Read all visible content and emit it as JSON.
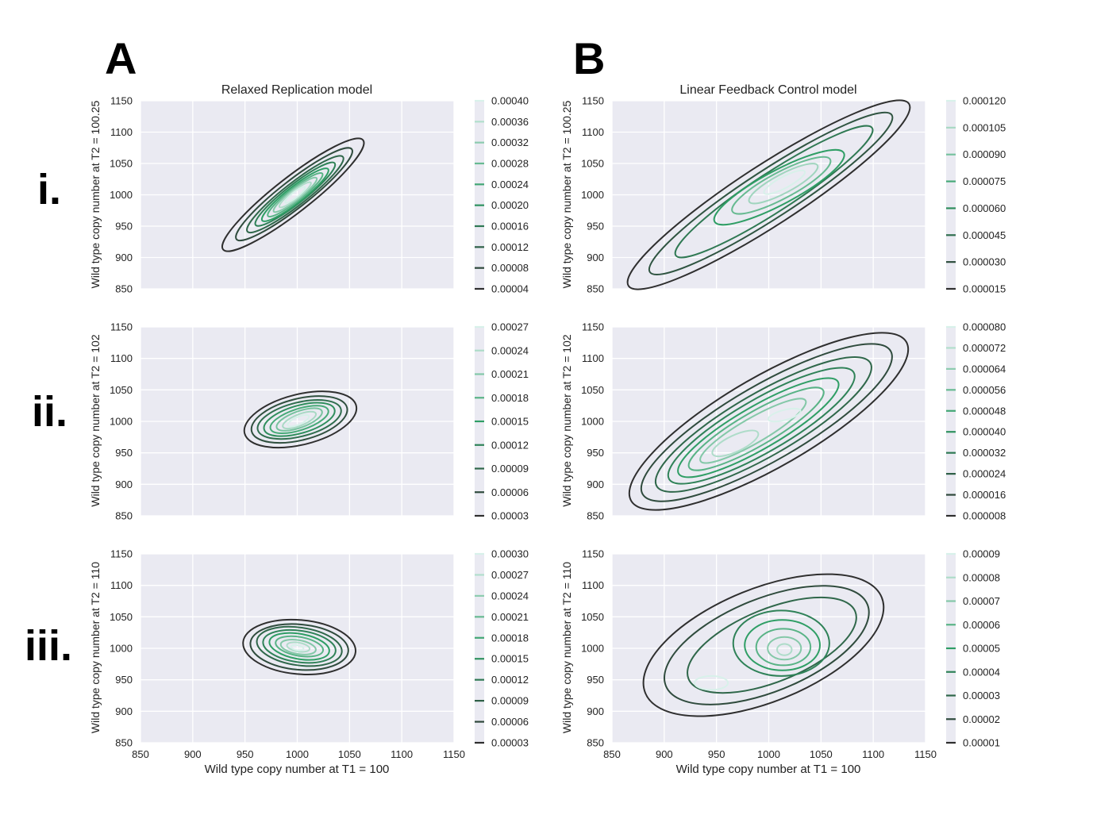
{
  "figure": {
    "panel_letters": [
      "A",
      "B"
    ],
    "row_labels": [
      "i.",
      "ii.",
      "iii."
    ],
    "column_titles": [
      "Relaxed Replication model",
      "Linear Feedback Control model"
    ],
    "x_label": "Wild type copy number at T1 = 100",
    "y_labels": [
      "Wild type copy number at T2 = 100.25",
      "Wild type copy number at T2 = 102",
      "Wild type copy number at T2 = 110"
    ]
  },
  "colors": {
    "background": "#eaeaf2",
    "grid": "#ffffff",
    "darkest": "#2f2f2f",
    "mid_green": "#2f9e65",
    "lightest": "#d8f1ea"
  },
  "chart_data": [
    {
      "type": "kde-contour",
      "panel": "A.i",
      "title": "Relaxed Replication model",
      "ylabel": "Wild type copy number at T2 = 100.25",
      "xlim": [
        850,
        1150
      ],
      "ylim": [
        850,
        1150
      ],
      "xticks": [
        850,
        900,
        950,
        1000,
        1050,
        1100,
        1150
      ],
      "yticks": [
        850,
        900,
        950,
        1000,
        1050,
        1100,
        1150
      ],
      "colorbar_ticks": [
        "0.00004",
        "0.00008",
        "0.00012",
        "0.00016",
        "0.00020",
        "0.00024",
        "0.00028",
        "0.00032",
        "0.00036",
        "0.00040"
      ],
      "peak": [
        1000,
        1000
      ],
      "contours": [
        {
          "cx": 996,
          "cy": 1000,
          "rx": 85,
          "ry": 28,
          "angle": 38
        },
        {
          "cx": 997,
          "cy": 1001,
          "rx": 70,
          "ry": 22,
          "angle": 38
        },
        {
          "cx": 998,
          "cy": 1001,
          "rx": 58,
          "ry": 18,
          "angle": 38
        },
        {
          "cx": 998,
          "cy": 1001,
          "rx": 48,
          "ry": 15,
          "angle": 38
        },
        {
          "cx": 998,
          "cy": 1000,
          "rx": 40,
          "ry": 13,
          "angle": 38
        },
        {
          "cx": 998,
          "cy": 1000,
          "rx": 33,
          "ry": 10.5,
          "angle": 38
        },
        {
          "cx": 998,
          "cy": 1000,
          "rx": 26,
          "ry": 8.5,
          "angle": 38
        },
        {
          "cx": 998,
          "cy": 1000,
          "rx": 19,
          "ry": 6.5,
          "angle": 38
        },
        {
          "cx": 998,
          "cy": 1000,
          "rx": 12,
          "ry": 4.5,
          "angle": 38
        }
      ]
    },
    {
      "type": "kde-contour",
      "panel": "B.i",
      "title": "Linear Feedback Control model",
      "ylabel": "Wild type copy number at T2 = 100.25",
      "xlim": [
        850,
        1150
      ],
      "ylim": [
        850,
        1150
      ],
      "xticks": [
        850,
        900,
        950,
        1000,
        1050,
        1100,
        1150
      ],
      "yticks": [
        850,
        900,
        950,
        1000,
        1050,
        1100,
        1150
      ],
      "colorbar_ticks": [
        "0.000015",
        "0.000030",
        "0.000045",
        "0.000060",
        "0.000075",
        "0.000090",
        "0.000105",
        "0.000120"
      ],
      "peak": [
        1015,
        1020
      ],
      "contours": [
        {
          "cx": 1000,
          "cy": 1000,
          "rx": 160,
          "ry": 48,
          "angle": 33
        },
        {
          "cx": 1002,
          "cy": 1002,
          "rx": 138,
          "ry": 38,
          "angle": 33
        },
        {
          "cx": 1005,
          "cy": 1005,
          "rx": 112,
          "ry": 31,
          "angle": 33
        },
        {
          "cx": 1010,
          "cy": 1012,
          "rx": 70,
          "ry": 27,
          "angle": 28
        },
        {
          "cx": 1012,
          "cy": 1015,
          "rx": 53,
          "ry": 21,
          "angle": 28
        },
        {
          "cx": 1014,
          "cy": 1018,
          "rx": 37,
          "ry": 15,
          "angle": 28
        },
        {
          "cx": 1015,
          "cy": 1020,
          "rx": 22,
          "ry": 9,
          "angle": 28
        }
      ]
    },
    {
      "type": "kde-contour",
      "panel": "A.ii",
      "ylabel": "Wild type copy number at T2 = 102",
      "xlim": [
        850,
        1150
      ],
      "ylim": [
        850,
        1150
      ],
      "xticks": [
        850,
        900,
        950,
        1000,
        1050,
        1100,
        1150
      ],
      "yticks": [
        850,
        900,
        950,
        1000,
        1050,
        1100,
        1150
      ],
      "colorbar_ticks": [
        "0.00003",
        "0.00006",
        "0.00009",
        "0.00012",
        "0.00015",
        "0.00018",
        "0.00021",
        "0.00024",
        "0.00027"
      ],
      "peak": [
        1000,
        1000
      ],
      "contours": [
        {
          "cx": 1003,
          "cy": 1003,
          "rx": 55,
          "ry": 40,
          "angle": 14
        },
        {
          "cx": 1002,
          "cy": 1003,
          "rx": 47,
          "ry": 33,
          "angle": 14
        },
        {
          "cx": 1002,
          "cy": 1003,
          "rx": 41,
          "ry": 27,
          "angle": 14
        },
        {
          "cx": 1002,
          "cy": 1003,
          "rx": 35,
          "ry": 22,
          "angle": 16
        },
        {
          "cx": 1002,
          "cy": 1003,
          "rx": 29,
          "ry": 17,
          "angle": 18
        },
        {
          "cx": 1002,
          "cy": 1003,
          "rx": 23,
          "ry": 13,
          "angle": 20
        },
        {
          "cx": 1002,
          "cy": 1002,
          "rx": 17,
          "ry": 9,
          "angle": 22
        },
        {
          "cx": 1001,
          "cy": 1001,
          "rx": 11,
          "ry": 6,
          "angle": 24
        }
      ]
    },
    {
      "type": "kde-contour",
      "panel": "B.ii",
      "ylabel": "Wild type copy number at T2 = 102",
      "xlim": [
        850,
        1150
      ],
      "ylim": [
        850,
        1150
      ],
      "xticks": [
        850,
        900,
        950,
        1000,
        1050,
        1100,
        1150
      ],
      "yticks": [
        850,
        900,
        950,
        1000,
        1050,
        1100,
        1150
      ],
      "colorbar_ticks": [
        "0.000008",
        "0.000016",
        "0.000024",
        "0.000032",
        "0.000040",
        "0.000048",
        "0.000056",
        "0.000064",
        "0.000072",
        "0.000080"
      ],
      "peak": [
        965,
        965
      ],
      "contours": [
        {
          "cx": 1000,
          "cy": 1000,
          "rx": 152,
          "ry": 72,
          "angle": 30
        },
        {
          "cx": 998,
          "cy": 998,
          "rx": 137,
          "ry": 60,
          "angle": 30
        },
        {
          "cx": 995,
          "cy": 995,
          "rx": 118,
          "ry": 50,
          "angle": 30
        },
        {
          "cx": 993,
          "cy": 993,
          "rx": 102,
          "ry": 42,
          "angle": 30
        },
        {
          "cx": 990,
          "cy": 990,
          "rx": 88,
          "ry": 34,
          "angle": 30
        },
        {
          "cx": 988,
          "cy": 988,
          "rx": 74,
          "ry": 27,
          "angle": 30
        },
        {
          "cx": 985,
          "cy": 985,
          "rx": 58,
          "ry": 20,
          "angle": 30
        },
        {
          "cx": 968,
          "cy": 965,
          "rx": 24,
          "ry": 13,
          "angle": 25
        },
        {
          "cx": 1015,
          "cy": 1010,
          "rx": 16,
          "ry": 8,
          "angle": 15
        }
      ]
    },
    {
      "type": "kde-contour",
      "panel": "A.iii",
      "ylabel": "Wild type copy number at T2 = 110",
      "xlabel": "Wild type copy number at T1 = 100",
      "xlim": [
        850,
        1150
      ],
      "ylim": [
        850,
        1150
      ],
      "xticks": [
        850,
        900,
        950,
        1000,
        1050,
        1100,
        1150
      ],
      "yticks": [
        850,
        900,
        950,
        1000,
        1050,
        1100,
        1150
      ],
      "colorbar_ticks": [
        "0.00003",
        "0.00006",
        "0.00009",
        "0.00012",
        "0.00015",
        "0.00018",
        "0.00021",
        "0.00024",
        "0.00027",
        "0.00030"
      ],
      "peak": [
        1000,
        1000
      ],
      "contours": [
        {
          "cx": 1002,
          "cy": 1002,
          "rx": 54,
          "ry": 43,
          "angle": -5
        },
        {
          "cx": 1002,
          "cy": 1002,
          "rx": 47,
          "ry": 36,
          "angle": -5
        },
        {
          "cx": 1002,
          "cy": 1003,
          "rx": 41,
          "ry": 30,
          "angle": -8
        },
        {
          "cx": 1002,
          "cy": 1003,
          "rx": 35,
          "ry": 25,
          "angle": -8
        },
        {
          "cx": 1002,
          "cy": 1003,
          "rx": 29,
          "ry": 20,
          "angle": -10
        },
        {
          "cx": 1002,
          "cy": 1003,
          "rx": 23,
          "ry": 15,
          "angle": -10
        },
        {
          "cx": 1001,
          "cy": 1002,
          "rx": 17,
          "ry": 11,
          "angle": -10
        },
        {
          "cx": 1001,
          "cy": 1002,
          "rx": 11,
          "ry": 7,
          "angle": -10
        },
        {
          "cx": 1000,
          "cy": 1001,
          "rx": 6,
          "ry": 4,
          "angle": -10
        }
      ]
    },
    {
      "type": "kde-contour",
      "panel": "B.iii",
      "ylabel": "Wild type copy number at T2 = 110",
      "xlabel": "Wild type copy number at T1 = 100",
      "xlim": [
        850,
        1150
      ],
      "ylim": [
        850,
        1150
      ],
      "xticks": [
        850,
        900,
        950,
        1000,
        1050,
        1100,
        1150
      ],
      "yticks": [
        850,
        900,
        950,
        1000,
        1050,
        1100,
        1150
      ],
      "colorbar_ticks": [
        "0.00001",
        "0.00002",
        "0.00003",
        "0.00004",
        "0.00005",
        "0.00006",
        "0.00007",
        "0.00008",
        "0.00009"
      ],
      "peak": [
        1015,
        1000
      ],
      "contours": [
        {
          "cx": 995,
          "cy": 1005,
          "rx": 122,
          "ry": 90,
          "angle": 22
        },
        {
          "cx": 998,
          "cy": 1005,
          "rx": 104,
          "ry": 74,
          "angle": 22
        },
        {
          "cx": 1003,
          "cy": 1005,
          "rx": 86,
          "ry": 58,
          "angle": 22
        },
        {
          "cx": 1012,
          "cy": 1008,
          "rx": 46,
          "ry": 52,
          "angle": 0
        },
        {
          "cx": 1013,
          "cy": 1005,
          "rx": 36,
          "ry": 40,
          "angle": 0
        },
        {
          "cx": 1014,
          "cy": 1002,
          "rx": 26,
          "ry": 29,
          "angle": 0
        },
        {
          "cx": 1015,
          "cy": 1000,
          "rx": 16,
          "ry": 18,
          "angle": 0
        },
        {
          "cx": 1015,
          "cy": 998,
          "rx": 7,
          "ry": 9,
          "angle": 0
        },
        {
          "cx": 945,
          "cy": 945,
          "rx": 16,
          "ry": 11,
          "angle": 0
        }
      ]
    }
  ]
}
